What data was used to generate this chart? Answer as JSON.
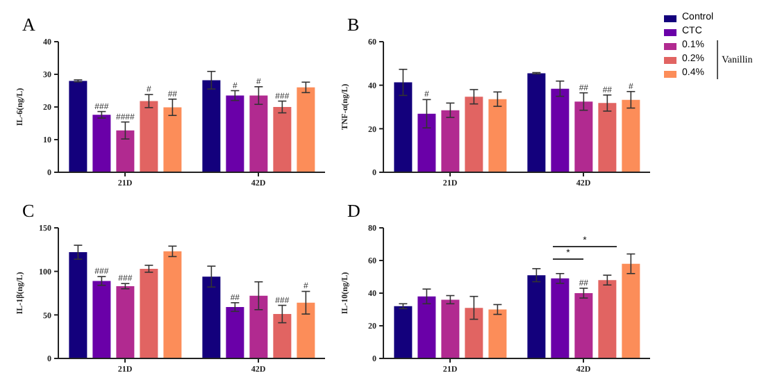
{
  "chart_data": [
    {
      "type": "bar",
      "title": "A",
      "ylabel": "IL-6(ng/L)",
      "categories": [
        "21D",
        "42D"
      ],
      "ylim": [
        0,
        40
      ],
      "yticks": [
        0,
        10,
        20,
        30,
        40
      ],
      "grid": false,
      "legend": false,
      "series": [
        {
          "color": "#13007c",
          "values": [
            28,
            28.2
          ],
          "errors": [
            0.3,
            2.7
          ],
          "value_labels": [
            null,
            null
          ]
        },
        {
          "color": "#6a00a8",
          "values": [
            17.6,
            23.5
          ],
          "errors": [
            1,
            1.5
          ],
          "value_labels": [
            "###",
            "#"
          ]
        },
        {
          "color": "#b12a90",
          "values": [
            12.8,
            23.5
          ],
          "errors": [
            2.6,
            2.7
          ],
          "value_labels": [
            "####",
            "#"
          ]
        },
        {
          "color": "#e16462",
          "values": [
            21.8,
            20
          ],
          "errors": [
            2,
            1.8
          ],
          "value_labels": [
            "#",
            "###"
          ]
        },
        {
          "color": "#fc8d59",
          "values": [
            19.9,
            26
          ],
          "errors": [
            2.5,
            1.6
          ],
          "value_labels": [
            "##",
            null
          ]
        }
      ]
    },
    {
      "type": "bar",
      "title": "B",
      "ylabel": "TNF-α(ng/L)",
      "categories": [
        "21D",
        "42D"
      ],
      "ylim": [
        0,
        60
      ],
      "yticks": [
        0,
        20,
        40,
        60
      ],
      "grid": false,
      "legend": "right",
      "annotations": [
        "Vanillin"
      ],
      "series": [
        {
          "name": "Control",
          "color": "#13007c",
          "values": [
            41.3,
            45.5
          ],
          "errors": [
            6,
            0.3
          ],
          "value_labels": [
            null,
            null
          ]
        },
        {
          "name": "CTC",
          "color": "#6a00a8",
          "values": [
            26.9,
            38.4
          ],
          "errors": [
            6.5,
            3.5
          ],
          "value_labels": [
            "#",
            null
          ]
        },
        {
          "name": "0.1%",
          "color": "#b12a90",
          "values": [
            28.5,
            32.5
          ],
          "errors": [
            3.3,
            4
          ],
          "value_labels": [
            null,
            "##"
          ]
        },
        {
          "name": "0.2%",
          "color": "#e16462",
          "values": [
            34.7,
            31.8
          ],
          "errors": [
            3.3,
            3.7
          ],
          "value_labels": [
            null,
            "##"
          ]
        },
        {
          "name": "0.4%",
          "color": "#fc8d59",
          "values": [
            33.6,
            33.3
          ],
          "errors": [
            3.3,
            3.8
          ],
          "value_labels": [
            null,
            "#"
          ]
        }
      ]
    },
    {
      "type": "bar",
      "title": "C",
      "ylabel": "IL-1β(ng/L)",
      "categories": [
        "21D",
        "42D"
      ],
      "ylim": [
        0,
        150
      ],
      "yticks": [
        0,
        50,
        100,
        150
      ],
      "grid": false,
      "legend": false,
      "series": [
        {
          "color": "#13007c",
          "values": [
            122,
            94
          ],
          "errors": [
            8,
            12
          ],
          "value_labels": [
            null,
            null
          ]
        },
        {
          "color": "#6a00a8",
          "values": [
            89,
            59
          ],
          "errors": [
            5,
            5
          ],
          "value_labels": [
            "###",
            "##"
          ]
        },
        {
          "color": "#b12a90",
          "values": [
            83,
            72
          ],
          "errors": [
            3,
            16
          ],
          "value_labels": [
            "###",
            null
          ]
        },
        {
          "color": "#e16462",
          "values": [
            103,
            51
          ],
          "errors": [
            4,
            10
          ],
          "value_labels": [
            null,
            "###"
          ]
        },
        {
          "color": "#fc8d59",
          "values": [
            123,
            64
          ],
          "errors": [
            6,
            13
          ],
          "value_labels": [
            null,
            "#"
          ]
        }
      ]
    },
    {
      "type": "bar",
      "title": "D",
      "ylabel": "IL-10(ng/L)",
      "categories": [
        "21D",
        "42D"
      ],
      "ylim": [
        0,
        80
      ],
      "yticks": [
        0,
        20,
        40,
        60,
        80
      ],
      "grid": false,
      "legend": false,
      "annotations": [
        "*",
        "*"
      ],
      "series": [
        {
          "color": "#13007c",
          "values": [
            32,
            51
          ],
          "errors": [
            1.5,
            4
          ],
          "value_labels": [
            null,
            null
          ]
        },
        {
          "color": "#6a00a8",
          "values": [
            38,
            49
          ],
          "errors": [
            4.5,
            3
          ],
          "value_labels": [
            null,
            null
          ]
        },
        {
          "color": "#b12a90",
          "values": [
            36,
            40
          ],
          "errors": [
            2.5,
            3
          ],
          "value_labels": [
            null,
            "##"
          ]
        },
        {
          "color": "#e16462",
          "values": [
            31,
            48
          ],
          "errors": [
            7,
            3
          ],
          "value_labels": [
            null,
            null
          ]
        },
        {
          "color": "#fc8d59",
          "values": [
            30,
            58
          ],
          "errors": [
            3,
            6
          ],
          "value_labels": [
            null,
            null
          ]
        }
      ]
    }
  ]
}
